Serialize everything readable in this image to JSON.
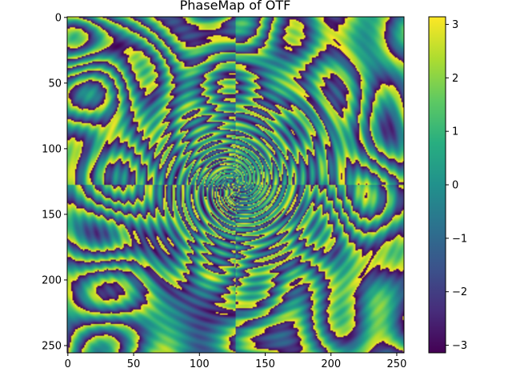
{
  "chart_data": {
    "type": "heatmap",
    "title": "PhaseMap of OTF",
    "xlabel": "",
    "ylabel": "",
    "x_range": [
      0,
      255
    ],
    "y_range": [
      0,
      255
    ],
    "y_inverted": true,
    "x_ticks": [
      0,
      50,
      100,
      150,
      200,
      250
    ],
    "y_ticks": [
      0,
      50,
      100,
      150,
      200,
      250
    ],
    "x_tick_labels": [
      "0",
      "50",
      "100",
      "150",
      "200",
      "250"
    ],
    "y_tick_labels": [
      "0",
      "50",
      "100",
      "150",
      "200",
      "250"
    ],
    "grid": false,
    "colormap": "viridis",
    "colorbar": {
      "range": [
        -3.14159,
        3.14159
      ],
      "ticks": [
        -3,
        -2,
        -1,
        0,
        1,
        2,
        3
      ],
      "tick_labels": [
        "−3",
        "−2",
        "−1",
        "0",
        "1",
        "2",
        "3"
      ],
      "placement": "right"
    },
    "colors": {
      "low": "#440154",
      "mid": "#21918c",
      "high": "#fde725"
    }
  }
}
